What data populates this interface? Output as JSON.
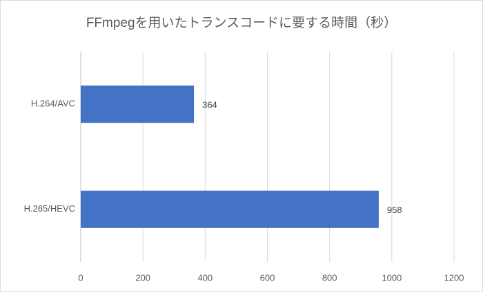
{
  "chart_data": {
    "type": "bar",
    "horizontal": true,
    "title": "FFmpegを用いたトランスコードに要する時間（秒）",
    "categories": [
      "H.264/AVC",
      "H.265/HEVC"
    ],
    "values": [
      364,
      958
    ],
    "color": "#4472c4",
    "xlim": [
      0,
      1200
    ],
    "xticks": [
      0,
      200,
      400,
      600,
      800,
      1000,
      1200
    ],
    "grid": true,
    "data_labels": true
  }
}
